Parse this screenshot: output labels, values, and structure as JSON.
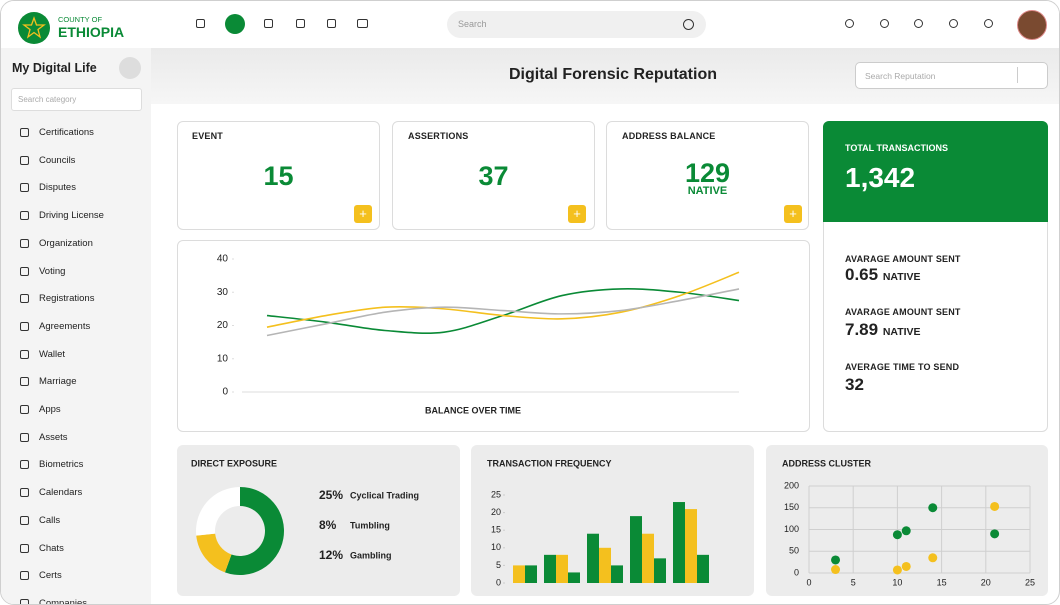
{
  "header": {
    "logo_top": "COUNTY OF",
    "logo_bottom": "ETHIOPIA",
    "search": "Search"
  },
  "sidebar": {
    "title": "My Digital Life",
    "search": "Search category",
    "items": [
      "Certifications",
      "Councils",
      "Disputes",
      "Driving License",
      "Organization",
      "Voting",
      "Registrations",
      "Agreements",
      "Wallet",
      "Marriage",
      "Apps",
      "Assets",
      "Biometrics",
      "Calendars",
      "Calls",
      "Chats",
      "Certs",
      "Companies"
    ]
  },
  "main": {
    "title": "Digital Forensic Reputation",
    "search": "Search Reputation",
    "stats": [
      {
        "label": "EVENT",
        "value": 15
      },
      {
        "label": "ASSERTIONS",
        "value": 37
      },
      {
        "label": "ADDRESS BALANCE",
        "value": 129,
        "unit": "NATIVE"
      }
    ],
    "summary": {
      "label": "TOTAL TRANSACTIONS",
      "value": "1,342",
      "metrics": [
        {
          "label": "AVARAGE AMOUNT SENT",
          "value": 0.65,
          "unit": "NATIVE"
        },
        {
          "label": "AVARAGE AMOUNT SENT",
          "value": 7.89,
          "unit": "NATIVE"
        },
        {
          "label": "AVERAGE TIME TO SEND",
          "value": 32
        }
      ]
    }
  },
  "chart_data": [
    {
      "type": "line",
      "xlabel": "BALANCE OVER TIME",
      "categories": [
        null,
        null,
        null,
        null,
        null,
        null,
        null,
        null,
        null
      ],
      "series": [
        {
          "color": "#0a8a36",
          "values": [
            23,
            21,
            18.5,
            18,
            23,
            29,
            31,
            30,
            27.5
          ]
        },
        {
          "color": "#f4c01e",
          "values": [
            19.5,
            23,
            25.5,
            25,
            23,
            22,
            24,
            29,
            36
          ]
        },
        {
          "color": "#b5b5b5",
          "values": [
            17,
            20.5,
            24,
            25.5,
            24.5,
            23.5,
            24.5,
            27.5,
            31
          ]
        }
      ],
      "ylim": [
        0,
        40
      ],
      "yticks": [
        0,
        10,
        20,
        30,
        40
      ]
    },
    {
      "type": "pie",
      "title": "DIRECT EXPOSURE",
      "categories": [
        "Cyclical Trading",
        "Tumbling",
        "Gambling"
      ],
      "values": [
        25,
        8,
        12
      ],
      "value_labels": [
        "25%",
        "8%",
        "12%"
      ],
      "colors": [
        "#0a8a36",
        "#f4c01e",
        "#ffffff"
      ]
    },
    {
      "type": "bar",
      "title": "TRANSACTION FREQUENCY",
      "categories": [
        null,
        null,
        null,
        null,
        null
      ],
      "series": [
        {
          "color": "#0a8a36",
          "values": [
            null,
            8,
            14,
            19,
            23
          ]
        },
        {
          "color": "#f4c01e",
          "values": [
            5,
            8,
            10,
            14,
            21
          ]
        },
        {
          "color": "#0a8a36",
          "values": [
            5,
            3,
            5,
            7,
            8
          ]
        }
      ],
      "ylim": [
        0,
        25
      ],
      "yticks": [
        0,
        5,
        10,
        15,
        20,
        25
      ]
    },
    {
      "type": "scatter",
      "title": "ADDRESS CLUSTER",
      "series": [
        {
          "color": "#0a8a36",
          "x": [
            3,
            10,
            11,
            14,
            21
          ],
          "values": [
            30,
            88,
            97,
            150,
            90
          ]
        },
        {
          "color": "#f4c01e",
          "x": [
            3,
            10,
            11,
            14,
            21
          ],
          "values": [
            8,
            7,
            15,
            35,
            153
          ]
        }
      ],
      "xlim": [
        0,
        25
      ],
      "xticks": [
        0,
        5,
        10,
        15,
        20,
        25
      ],
      "ylim": [
        0,
        200
      ],
      "yticks": [
        0,
        50,
        100,
        150,
        200
      ],
      "grid": true
    }
  ]
}
